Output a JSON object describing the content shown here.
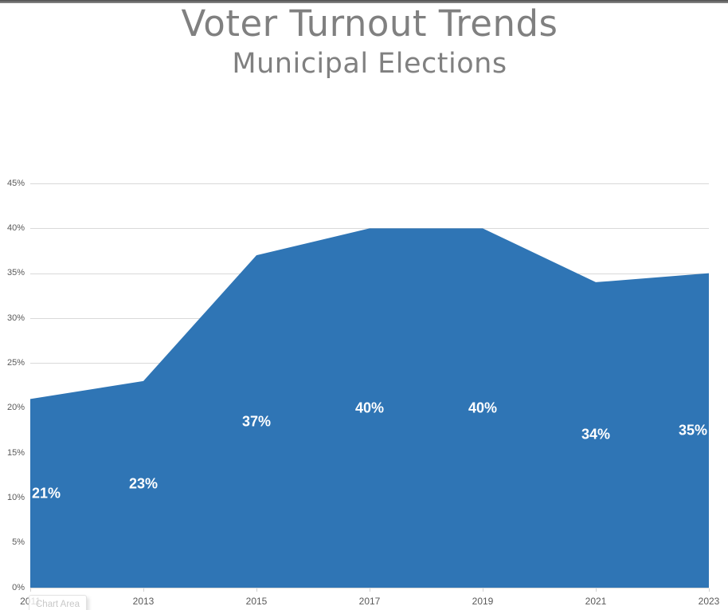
{
  "tooltip": {
    "label": "Chart Area"
  },
  "chart_data": {
    "type": "area",
    "title": "Voter Turnout Trends",
    "subtitle": "Municipal Elections",
    "categories": [
      "2011",
      "2013",
      "2015",
      "2017",
      "2019",
      "2021",
      "2023"
    ],
    "values": [
      21,
      23,
      37,
      40,
      40,
      34,
      35
    ],
    "data_labels": [
      "21%",
      "23%",
      "37%",
      "40%",
      "40%",
      "34%",
      "35%"
    ],
    "y_tick_labels": [
      "0%",
      "5%",
      "10%",
      "15%",
      "20%",
      "25%",
      "30%",
      "35%",
      "40%",
      "45%"
    ],
    "ylim": [
      0,
      45
    ],
    "y_tick_step": 5,
    "xlabel": "",
    "ylabel": "",
    "grid": true,
    "legend": "none",
    "colors": {
      "area": "#2F75B5",
      "data_label": "#FFFFFF",
      "title": "#808080",
      "axis_text": "#595959",
      "gridline": "#D9D9D9",
      "tick": "#D1D1D1",
      "top_bar": "#6B6B6B"
    }
  }
}
